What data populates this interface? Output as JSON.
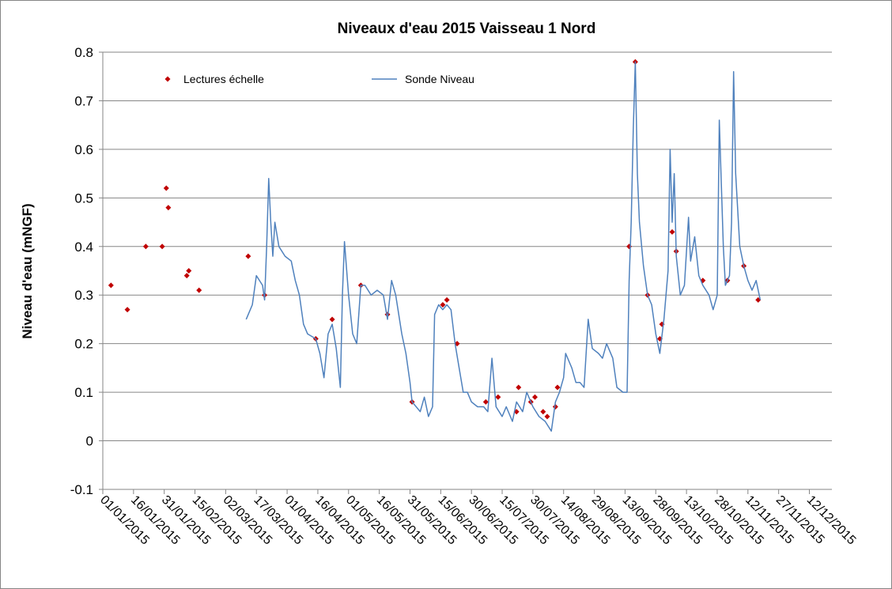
{
  "chart_data": {
    "type": "line",
    "title": "Niveaux d'eau 2015 Vaisseau 1 Nord",
    "ylabel": "Niveau d'eau (mNGF)",
    "xlim": [
      "01/01/2015",
      "23/12/2015"
    ],
    "xticks": [
      "01/01/2015",
      "16/01/2015",
      "31/01/2015",
      "15/02/2015",
      "02/03/2015",
      "17/03/2015",
      "01/04/2015",
      "16/04/2015",
      "01/05/2015",
      "16/05/2015",
      "31/05/2015",
      "15/06/2015",
      "30/06/2015",
      "15/07/2015",
      "30/07/2015",
      "14/08/2015",
      "29/08/2015",
      "13/09/2015",
      "28/09/2015",
      "13/10/2015",
      "28/10/2015",
      "12/11/2015",
      "27/11/2015",
      "12/12/2015"
    ],
    "ylim": [
      -0.1,
      0.8
    ],
    "yticks": [
      -0.1,
      0,
      0.1,
      0.2,
      0.3,
      0.4,
      0.5,
      0.6,
      0.7,
      0.8
    ],
    "grid": true,
    "legend": "top-left",
    "series": [
      {
        "name": "Lectures échelle",
        "type": "scatter",
        "color": "#c00000",
        "x": [
          "05/01/2015",
          "13/01/2015",
          "22/01/2015",
          "30/01/2015",
          "01/02/2015",
          "02/02/2015",
          "11/02/2015",
          "12/02/2015",
          "17/02/2015",
          "13/03/2015",
          "21/03/2015",
          "15/04/2015",
          "23/04/2015",
          "07/05/2015",
          "20/05/2015",
          "01/06/2015",
          "16/06/2015",
          "18/06/2015",
          "23/06/2015",
          "07/07/2015",
          "13/07/2015",
          "22/07/2015",
          "23/07/2015",
          "29/07/2015",
          "31/07/2015",
          "04/08/2015",
          "06/08/2015",
          "10/08/2015",
          "11/08/2015",
          "15/09/2015",
          "18/09/2015",
          "24/09/2015",
          "30/09/2015",
          "01/10/2015",
          "06/10/2015",
          "08/10/2015",
          "21/10/2015",
          "02/11/2015",
          "10/11/2015",
          "17/11/2015"
        ],
        "values": [
          0.32,
          0.27,
          0.4,
          0.4,
          0.52,
          0.48,
          0.34,
          0.35,
          0.31,
          0.38,
          0.3,
          0.21,
          0.25,
          0.32,
          0.26,
          0.08,
          0.28,
          0.29,
          0.2,
          0.08,
          0.09,
          0.06,
          0.11,
          0.08,
          0.09,
          0.06,
          0.05,
          0.07,
          0.11,
          0.4,
          0.78,
          0.3,
          0.21,
          0.24,
          0.43,
          0.39,
          0.33,
          0.33,
          0.36,
          0.29
        ]
      },
      {
        "name": "Sonde Niveau",
        "type": "line",
        "color": "#4f81bd",
        "x": [
          "12/03/2015",
          "13/03/2015",
          "15/03/2015",
          "17/03/2015",
          "20/03/2015",
          "21/03/2015",
          "22/03/2015",
          "23/03/2015",
          "24/03/2015",
          "25/03/2015",
          "26/03/2015",
          "28/03/2015",
          "31/03/2015",
          "03/04/2015",
          "05/04/2015",
          "07/04/2015",
          "09/04/2015",
          "11/04/2015",
          "15/04/2015",
          "17/04/2015",
          "19/04/2015",
          "21/04/2015",
          "23/04/2015",
          "25/04/2015",
          "27/04/2015",
          "28/04/2015",
          "29/04/2015",
          "01/05/2015",
          "03/05/2015",
          "05/05/2015",
          "07/05/2015",
          "09/05/2015",
          "12/05/2015",
          "15/05/2015",
          "18/05/2015",
          "20/05/2015",
          "22/05/2015",
          "24/05/2015",
          "27/05/2015",
          "29/05/2015",
          "31/05/2015",
          "01/06/2015",
          "03/06/2015",
          "05/06/2015",
          "07/06/2015",
          "09/06/2015",
          "11/06/2015",
          "12/06/2015",
          "14/06/2015",
          "16/06/2015",
          "18/06/2015",
          "20/06/2015",
          "22/06/2015",
          "24/06/2015",
          "26/06/2015",
          "28/06/2015",
          "30/06/2015",
          "03/07/2015",
          "06/07/2015",
          "08/07/2015",
          "10/07/2015",
          "12/07/2015",
          "15/07/2015",
          "17/07/2015",
          "20/07/2015",
          "22/07/2015",
          "25/07/2015",
          "27/07/2015",
          "30/07/2015",
          "02/08/2015",
          "05/08/2015",
          "08/08/2015",
          "10/08/2015",
          "12/08/2015",
          "14/08/2015",
          "15/08/2015",
          "18/08/2015",
          "20/08/2015",
          "22/08/2015",
          "24/08/2015",
          "26/08/2015",
          "28/08/2015",
          "31/08/2015",
          "02/09/2015",
          "04/09/2015",
          "07/09/2015",
          "09/09/2015",
          "12/09/2015",
          "14/09/2015",
          "15/09/2015",
          "16/09/2015",
          "17/09/2015",
          "18/09/2015",
          "19/09/2015",
          "20/09/2015",
          "22/09/2015",
          "24/09/2015",
          "26/09/2015",
          "28/09/2015",
          "30/09/2015",
          "02/10/2015",
          "04/10/2015",
          "05/10/2015",
          "06/10/2015",
          "07/10/2015",
          "08/10/2015",
          "10/10/2015",
          "12/10/2015",
          "14/10/2015",
          "15/10/2015",
          "17/10/2015",
          "19/10/2015",
          "21/10/2015",
          "24/10/2015",
          "26/10/2015",
          "28/10/2015",
          "29/10/2015",
          "31/10/2015",
          "01/11/2015",
          "03/11/2015",
          "04/11/2015",
          "05/11/2015",
          "06/11/2015",
          "08/11/2015",
          "10/11/2015",
          "12/11/2015",
          "14/11/2015",
          "16/11/2015",
          "18/11/2015"
        ],
        "values": [
          0.25,
          0.26,
          0.28,
          0.34,
          0.32,
          0.29,
          0.4,
          0.54,
          0.45,
          0.38,
          0.45,
          0.4,
          0.38,
          0.37,
          0.33,
          0.3,
          0.24,
          0.22,
          0.21,
          0.18,
          0.13,
          0.22,
          0.24,
          0.19,
          0.11,
          0.3,
          0.41,
          0.3,
          0.22,
          0.2,
          0.32,
          0.32,
          0.3,
          0.31,
          0.3,
          0.25,
          0.33,
          0.3,
          0.22,
          0.18,
          0.12,
          0.08,
          0.07,
          0.06,
          0.09,
          0.05,
          0.07,
          0.26,
          0.28,
          0.27,
          0.28,
          0.27,
          0.2,
          0.15,
          0.1,
          0.1,
          0.08,
          0.07,
          0.07,
          0.06,
          0.17,
          0.07,
          0.05,
          0.07,
          0.04,
          0.08,
          0.06,
          0.1,
          0.07,
          0.05,
          0.04,
          0.02,
          0.08,
          0.1,
          0.13,
          0.18,
          0.15,
          0.12,
          0.12,
          0.11,
          0.25,
          0.19,
          0.18,
          0.17,
          0.2,
          0.17,
          0.11,
          0.1,
          0.1,
          0.33,
          0.45,
          0.64,
          0.78,
          0.55,
          0.45,
          0.36,
          0.3,
          0.28,
          0.22,
          0.18,
          0.25,
          0.35,
          0.6,
          0.45,
          0.55,
          0.38,
          0.3,
          0.32,
          0.46,
          0.37,
          0.42,
          0.34,
          0.32,
          0.3,
          0.27,
          0.3,
          0.66,
          0.4,
          0.32,
          0.34,
          0.45,
          0.76,
          0.55,
          0.4,
          0.36,
          0.33,
          0.31,
          0.33,
          0.29
        ]
      }
    ]
  }
}
